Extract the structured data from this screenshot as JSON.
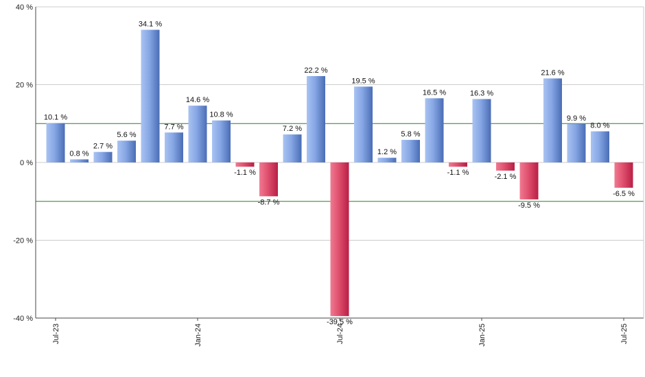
{
  "chart_data": {
    "type": "bar",
    "title": "",
    "xlabel": "",
    "ylabel": "",
    "ylim": [
      -40,
      40
    ],
    "yticks": [
      40,
      20,
      0,
      -20,
      -40
    ],
    "ytick_labels": [
      "40 %",
      "20 %",
      "0 %",
      "-20 %",
      "-40 %"
    ],
    "reference_lines": [
      10,
      -10
    ],
    "x_tick_labels": [
      {
        "index": 0,
        "label": "Jul-23"
      },
      {
        "index": 6,
        "label": "Jan-24"
      },
      {
        "index": 12,
        "label": "Jul-24"
      },
      {
        "index": 18,
        "label": "Jan-25"
      },
      {
        "index": 24,
        "label": "Jul-25"
      }
    ],
    "values": [
      10.1,
      0.8,
      2.7,
      5.6,
      34.1,
      7.7,
      14.6,
      10.8,
      -1.1,
      -8.7,
      7.2,
      22.2,
      -39.5,
      19.5,
      1.2,
      5.8,
      16.5,
      -1.1,
      16.3,
      -2.1,
      -9.5,
      21.6,
      9.9,
      8.0,
      -6.5
    ],
    "value_labels": [
      "10.1 %",
      "0.8 %",
      "2.7 %",
      "5.6 %",
      "34.1 %",
      "7.7 %",
      "14.6 %",
      "10.8 %",
      "-1.1 %",
      "-8.7 %",
      "7.2 %",
      "22.2 %",
      "-39.5 %",
      "19.5 %",
      "1.2 %",
      "5.8 %",
      "16.5 %",
      "-1.1 %",
      "16.3 %",
      "-2.1 %",
      "-9.5 %",
      "21.6 %",
      "9.9 %",
      "8.0 %",
      "-6.5 %"
    ],
    "grid": true,
    "legend": "none",
    "colors": {
      "positive_light": "#a9c3f2",
      "positive_dark": "#4a6db5",
      "negative_light": "#f07a92",
      "negative_dark": "#b81f45",
      "reference_line": "#2e7d2e",
      "grid": "#cccccc",
      "axis": "#444444"
    }
  }
}
